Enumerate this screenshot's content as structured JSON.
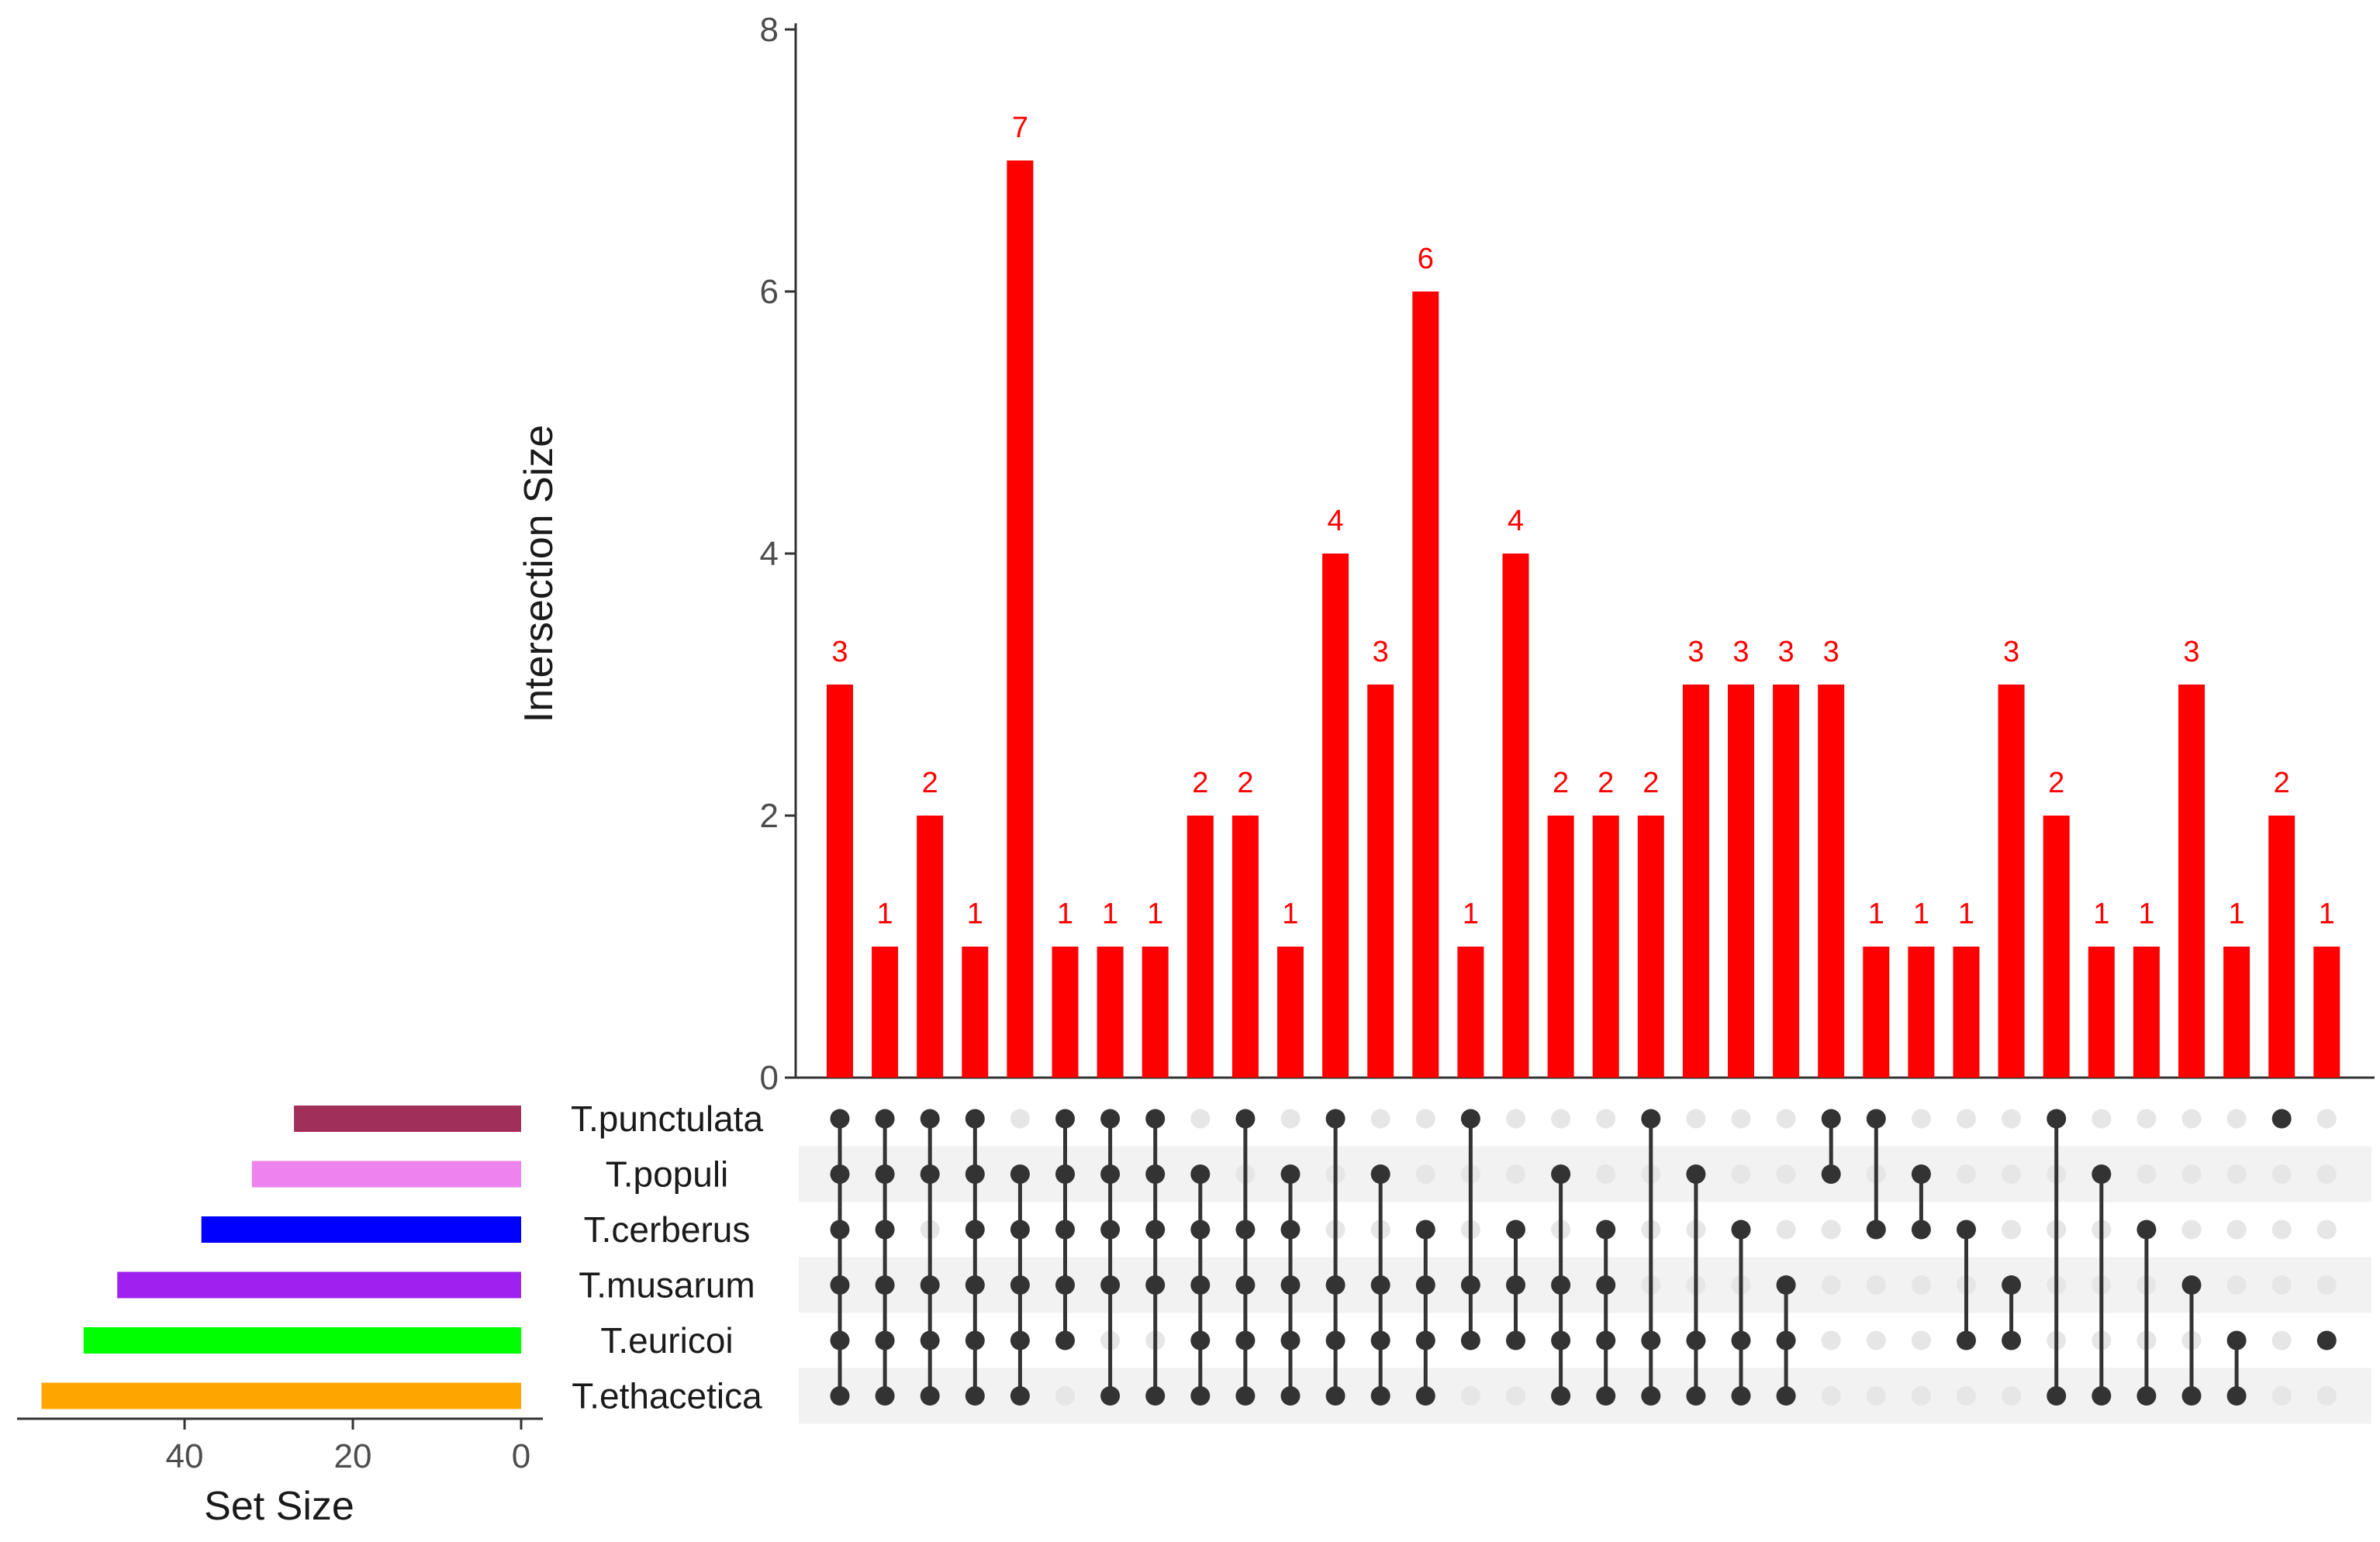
{
  "chart_data": {
    "type": "upset",
    "intersection_axis": {
      "title": "Intersection Size",
      "ylim": [
        0,
        8
      ],
      "ticks": [
        0,
        2,
        4,
        6,
        8
      ]
    },
    "set_size_axis": {
      "title": "Set Size",
      "xlim": [
        60,
        0
      ],
      "ticks": [
        40,
        20,
        0
      ]
    },
    "bar_color": "#ff0000",
    "label_color": "#ff0000",
    "dot_color": "#333333",
    "dot_inactive_color": "#e6e6e6",
    "stripe_color": "#f2f2f2",
    "sets": [
      {
        "name": "T.punctulata",
        "size": 27,
        "color": "#a0305a"
      },
      {
        "name": "T.populi",
        "size": 32,
        "color": "#ee82ee"
      },
      {
        "name": "T.cerberus",
        "size": 38,
        "color": "#0000ff"
      },
      {
        "name": "T.musarum",
        "size": 48,
        "color": "#a020f0"
      },
      {
        "name": "T.euricoi",
        "size": 52,
        "color": "#00ff00"
      },
      {
        "name": "T.ethacetica",
        "size": 57,
        "color": "#ffa500"
      }
    ],
    "intersections": [
      {
        "value": 3,
        "sets": [
          "T.punctulata",
          "T.populi",
          "T.cerberus",
          "T.musarum",
          "T.euricoi",
          "T.ethacetica"
        ]
      },
      {
        "value": 1,
        "sets": [
          "T.punctulata",
          "T.populi",
          "T.cerberus",
          "T.musarum",
          "T.euricoi",
          "T.ethacetica"
        ]
      },
      {
        "value": 2,
        "sets": [
          "T.punctulata",
          "T.populi",
          "T.musarum",
          "T.euricoi",
          "T.ethacetica"
        ]
      },
      {
        "value": 1,
        "sets": [
          "T.punctulata",
          "T.populi",
          "T.cerberus",
          "T.musarum",
          "T.euricoi",
          "T.ethacetica"
        ]
      },
      {
        "value": 7,
        "sets": [
          "T.populi",
          "T.cerberus",
          "T.musarum",
          "T.euricoi",
          "T.ethacetica"
        ]
      },
      {
        "value": 1,
        "sets": [
          "T.punctulata",
          "T.populi",
          "T.cerberus",
          "T.musarum",
          "T.euricoi"
        ]
      },
      {
        "value": 1,
        "sets": [
          "T.punctulata",
          "T.populi",
          "T.cerberus",
          "T.musarum",
          "T.ethacetica"
        ]
      },
      {
        "value": 1,
        "sets": [
          "T.punctulata",
          "T.populi",
          "T.cerberus",
          "T.musarum",
          "T.ethacetica"
        ]
      },
      {
        "value": 2,
        "sets": [
          "T.populi",
          "T.cerberus",
          "T.musarum",
          "T.euricoi",
          "T.ethacetica"
        ]
      },
      {
        "value": 2,
        "sets": [
          "T.punctulata",
          "T.cerberus",
          "T.musarum",
          "T.euricoi",
          "T.ethacetica"
        ]
      },
      {
        "value": 1,
        "sets": [
          "T.populi",
          "T.cerberus",
          "T.musarum",
          "T.euricoi",
          "T.ethacetica"
        ]
      },
      {
        "value": 4,
        "sets": [
          "T.punctulata",
          "T.musarum",
          "T.euricoi",
          "T.ethacetica"
        ]
      },
      {
        "value": 3,
        "sets": [
          "T.populi",
          "T.musarum",
          "T.euricoi",
          "T.ethacetica"
        ]
      },
      {
        "value": 6,
        "sets": [
          "T.cerberus",
          "T.musarum",
          "T.euricoi",
          "T.ethacetica"
        ]
      },
      {
        "value": 1,
        "sets": [
          "T.punctulata",
          "T.musarum",
          "T.euricoi"
        ]
      },
      {
        "value": 4,
        "sets": [
          "T.cerberus",
          "T.musarum",
          "T.euricoi"
        ]
      },
      {
        "value": 2,
        "sets": [
          "T.populi",
          "T.musarum",
          "T.euricoi",
          "T.ethacetica"
        ]
      },
      {
        "value": 2,
        "sets": [
          "T.cerberus",
          "T.musarum",
          "T.euricoi",
          "T.ethacetica"
        ]
      },
      {
        "value": 2,
        "sets": [
          "T.punctulata",
          "T.euricoi",
          "T.ethacetica"
        ]
      },
      {
        "value": 3,
        "sets": [
          "T.populi",
          "T.euricoi",
          "T.ethacetica"
        ]
      },
      {
        "value": 3,
        "sets": [
          "T.cerberus",
          "T.euricoi",
          "T.ethacetica"
        ]
      },
      {
        "value": 3,
        "sets": [
          "T.musarum",
          "T.euricoi",
          "T.ethacetica"
        ]
      },
      {
        "value": 3,
        "sets": [
          "T.punctulata",
          "T.populi"
        ]
      },
      {
        "value": 1,
        "sets": [
          "T.punctulata",
          "T.cerberus"
        ]
      },
      {
        "value": 1,
        "sets": [
          "T.populi",
          "T.cerberus"
        ]
      },
      {
        "value": 1,
        "sets": [
          "T.cerberus",
          "T.euricoi"
        ]
      },
      {
        "value": 3,
        "sets": [
          "T.musarum",
          "T.euricoi"
        ]
      },
      {
        "value": 2,
        "sets": [
          "T.punctulata",
          "T.ethacetica"
        ]
      },
      {
        "value": 1,
        "sets": [
          "T.populi",
          "T.ethacetica"
        ]
      },
      {
        "value": 1,
        "sets": [
          "T.cerberus",
          "T.ethacetica"
        ]
      },
      {
        "value": 3,
        "sets": [
          "T.musarum",
          "T.ethacetica"
        ]
      },
      {
        "value": 1,
        "sets": [
          "T.euricoi",
          "T.ethacetica"
        ]
      },
      {
        "value": 2,
        "sets": [
          "T.punctulata"
        ]
      },
      {
        "value": 1,
        "sets": [
          "T.euricoi"
        ]
      }
    ]
  }
}
